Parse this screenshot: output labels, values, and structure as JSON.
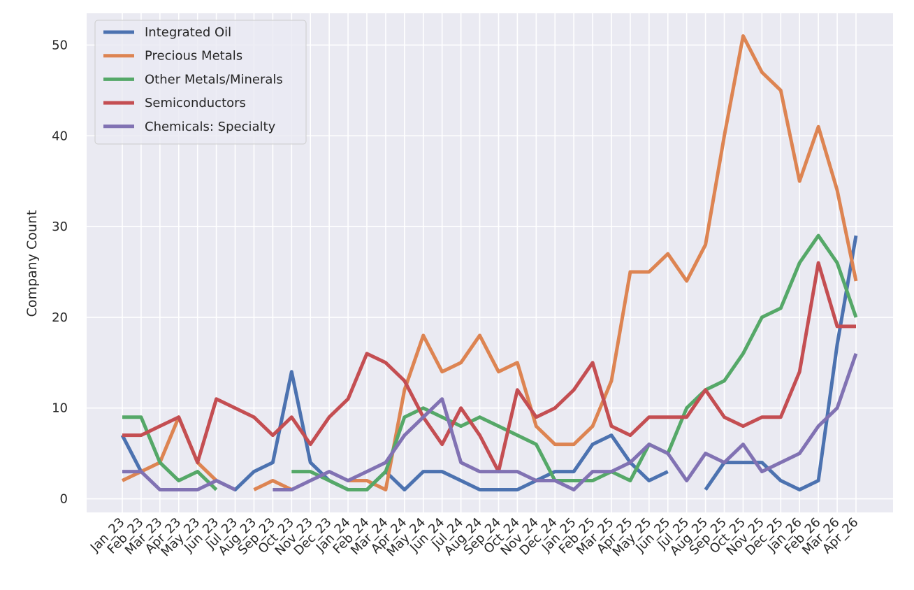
{
  "chart_data": {
    "type": "line",
    "title": "",
    "xlabel": "",
    "ylabel": "Company Count",
    "ylim": [
      -1.5,
      53.5
    ],
    "yticks": [
      0,
      10,
      20,
      30,
      40,
      50
    ],
    "grid": true,
    "legend_position": "top-left",
    "categories": [
      "Jan_23",
      "Feb_23",
      "Mar_23",
      "Apr_23",
      "May_23",
      "Jun_23",
      "Jul_23",
      "Aug_23",
      "Sep_23",
      "Oct_23",
      "Nov_23",
      "Dec_23",
      "Jan_24",
      "Feb_24",
      "Mar_24",
      "Apr_24",
      "May_24",
      "Jun_24",
      "Jul_24",
      "Aug_24",
      "Sep_24",
      "Oct_24",
      "Nov_24",
      "Dec_24",
      "Jan_25",
      "Feb_25",
      "Mar_25",
      "Apr_25",
      "May_25",
      "Jun_25",
      "Jul_25",
      "Aug_25",
      "Sep_25",
      "Oct_25",
      "Nov_25",
      "Dec_25",
      "Jan_26",
      "Feb_26",
      "Mar_26",
      "Apr_26"
    ],
    "series": [
      {
        "name": "Integrated Oil",
        "color": "#4c72b0",
        "values": [
          7,
          3,
          null,
          null,
          null,
          2,
          1,
          3,
          4,
          14,
          4,
          2,
          1,
          1,
          3,
          1,
          3,
          3,
          2,
          1,
          1,
          1,
          2,
          3,
          3,
          6,
          7,
          4,
          2,
          3,
          null,
          1,
          4,
          4,
          4,
          2,
          1,
          2,
          17,
          29
        ]
      },
      {
        "name": "Precious Metals",
        "color": "#dd8452",
        "values": [
          2,
          3,
          4,
          9,
          4,
          2,
          null,
          1,
          2,
          1,
          null,
          null,
          2,
          2,
          1,
          12,
          18,
          14,
          15,
          18,
          14,
          15,
          8,
          6,
          6,
          8,
          13,
          25,
          25,
          27,
          24,
          28,
          40,
          51,
          47,
          45,
          35,
          41,
          34,
          24
        ]
      },
      {
        "name": "Other Metals/Minerals",
        "color": "#55a868",
        "values": [
          9,
          9,
          4,
          2,
          3,
          1,
          null,
          null,
          null,
          3,
          3,
          2,
          1,
          1,
          3,
          9,
          10,
          9,
          8,
          9,
          8,
          7,
          6,
          2,
          2,
          2,
          3,
          2,
          6,
          5,
          10,
          12,
          13,
          16,
          20,
          21,
          26,
          29,
          26,
          20
        ]
      },
      {
        "name": "Semiconductors",
        "color": "#c44e52",
        "values": [
          7,
          7,
          8,
          9,
          4,
          11,
          10,
          9,
          7,
          9,
          6,
          9,
          11,
          16,
          15,
          13,
          9,
          6,
          10,
          7,
          3,
          12,
          9,
          10,
          12,
          15,
          8,
          7,
          9,
          9,
          9,
          12,
          9,
          8,
          9,
          9,
          14,
          26,
          19,
          19
        ]
      },
      {
        "name": "Chemicals: Specialty",
        "color": "#8172b3",
        "values": [
          3,
          3,
          1,
          1,
          1,
          2,
          1,
          null,
          1,
          1,
          2,
          3,
          2,
          3,
          4,
          7,
          9,
          11,
          4,
          3,
          3,
          3,
          2,
          2,
          1,
          3,
          3,
          4,
          6,
          5,
          2,
          5,
          4,
          6,
          3,
          4,
          5,
          8,
          10,
          16
        ]
      }
    ]
  }
}
